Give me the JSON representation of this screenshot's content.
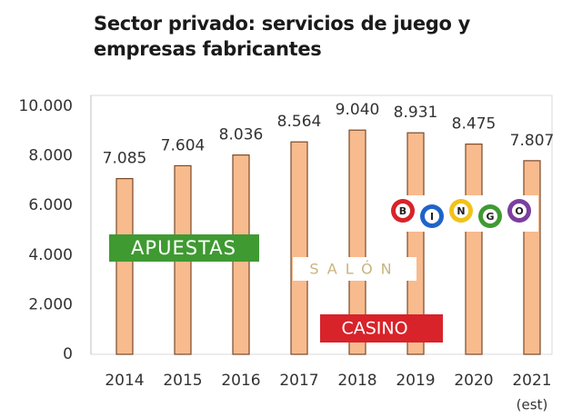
{
  "chart_data": {
    "type": "bar",
    "title": "Sector privado: servicios de juego y empresas fabricantes",
    "categories": [
      "2014",
      "2015",
      "2016",
      "2017",
      "2018",
      "2019",
      "2020",
      "2021"
    ],
    "estimate_label": "(est)",
    "values": [
      7085,
      7604,
      8036,
      8564,
      9040,
      8931,
      8475,
      7807
    ],
    "value_labels": [
      "7.085",
      "7.604",
      "8.036",
      "8.564",
      "9.040",
      "8.931",
      "8.475",
      "7.807"
    ],
    "color": "#f8bb8e",
    "edge_color": "#7a4a2a",
    "ylim": [
      0,
      10000
    ],
    "yticks": [
      0,
      {
        "value": 2000,
        "label": "2.000"
      },
      {
        "value": 4000,
        "label": "4.000"
      },
      {
        "value": 6000,
        "label": "6.000"
      },
      {
        "value": 8000,
        "label": "8.000"
      },
      {
        "value": 10000,
        "label": "10.000"
      }
    ],
    "grid": false,
    "annotations": {
      "apuestas": "APUESTAS",
      "salon": "SALÓN",
      "casino": "CASINO",
      "bingo": [
        "B",
        "I",
        "N",
        "G",
        "O"
      ]
    }
  }
}
